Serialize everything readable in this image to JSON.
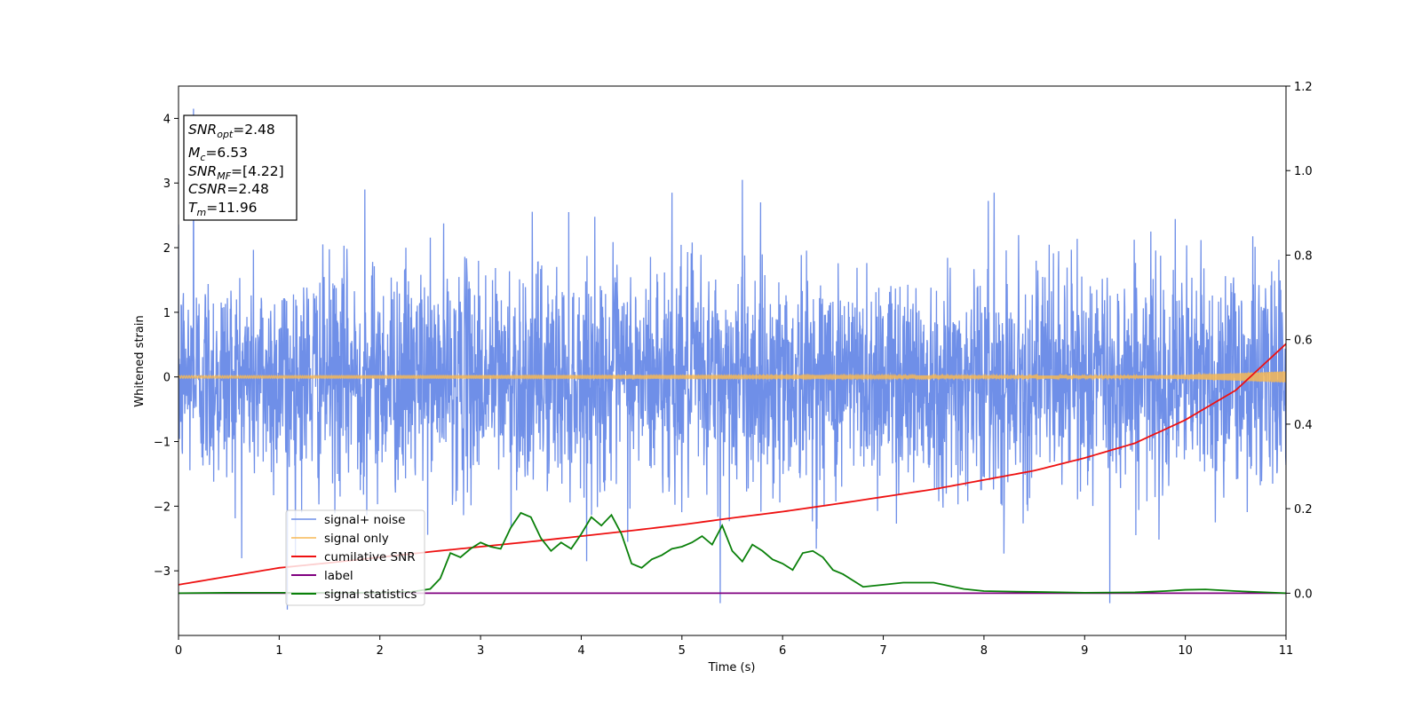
{
  "chart_data": {
    "type": "line",
    "title": "",
    "xlabel": "Time (s)",
    "ylabel": "Whitened strain",
    "xlim": [
      0,
      11
    ],
    "ylim": [
      -4,
      4.5
    ],
    "y2lim": [
      -0.1,
      1.2
    ],
    "x_ticks": [
      "0",
      "1",
      "2",
      "3",
      "4",
      "5",
      "6",
      "7",
      "8",
      "9",
      "10",
      "11"
    ],
    "x_tick_values": [
      0,
      1,
      2,
      3,
      4,
      5,
      6,
      7,
      8,
      9,
      10,
      11
    ],
    "y_ticks": [
      "−3",
      "−2",
      "−1",
      "0",
      "1",
      "2",
      "3",
      "4"
    ],
    "y_tick_values": [
      -3,
      -2,
      -1,
      0,
      1,
      2,
      3,
      4
    ],
    "y2_ticks": [
      "0.0",
      "0.2",
      "0.4",
      "0.6",
      "0.8",
      "1.0",
      "1.2"
    ],
    "y2_tick_values": [
      0.0,
      0.2,
      0.4,
      0.6,
      0.8,
      1.0,
      1.2
    ],
    "grid": false,
    "legend_position": "bottom-left",
    "info_box": {
      "lines": [
        {
          "main": "SNR",
          "sub": "opt",
          "value": "=2.48"
        },
        {
          "main": "M",
          "sub": "c",
          "value": "=6.53"
        },
        {
          "main": "SNR",
          "sub": "MF",
          "value": "=[4.22]"
        },
        {
          "main": "CSNR",
          "sub": "",
          "value": "=2.48"
        },
        {
          "main": "T",
          "sub": "m",
          "value": "=11.96"
        }
      ]
    },
    "series": [
      {
        "name": "signal+ noise",
        "color": "#6f8fe8",
        "axis": "left",
        "style": "noise",
        "amplitude_sd": 0.85,
        "extreme_points": [
          {
            "x": 0.15,
            "y": 4.15
          },
          {
            "x": 1.08,
            "y": -3.6
          },
          {
            "x": 5.38,
            "y": -3.5
          },
          {
            "x": 9.25,
            "y": -3.5
          },
          {
            "x": 5.6,
            "y": 3.05
          },
          {
            "x": 1.85,
            "y": 2.9
          },
          {
            "x": 4.9,
            "y": 2.85
          },
          {
            "x": 8.1,
            "y": 2.85
          }
        ]
      },
      {
        "name": "signal only",
        "color": "#f7b955",
        "axis": "left",
        "style": "chirp",
        "amplitude_start": 0.02,
        "amplitude_end": 0.09,
        "growth_start": 9.5
      },
      {
        "name": "cumilative SNR",
        "color": "#ee1111",
        "axis": "right",
        "x": [
          0,
          0.5,
          1,
          1.5,
          2,
          2.5,
          3,
          3.5,
          4,
          4.5,
          5,
          5.5,
          6,
          6.5,
          7,
          7.5,
          8,
          8.5,
          9,
          9.5,
          10,
          10.5,
          11
        ],
        "values": [
          0.02,
          0.04,
          0.06,
          0.072,
          0.085,
          0.098,
          0.11,
          0.122,
          0.135,
          0.148,
          0.162,
          0.178,
          0.193,
          0.21,
          0.228,
          0.246,
          0.268,
          0.29,
          0.32,
          0.355,
          0.41,
          0.48,
          0.59
        ]
      },
      {
        "name": "label",
        "color": "#800080",
        "axis": "right",
        "x": [
          0,
          11
        ],
        "values": [
          0,
          0
        ]
      },
      {
        "name": "signal statistics",
        "color": "#0a800a",
        "axis": "right",
        "x": [
          0,
          0.5,
          1,
          1.5,
          2,
          2.3,
          2.5,
          2.6,
          2.7,
          2.8,
          2.9,
          3.0,
          3.1,
          3.2,
          3.3,
          3.4,
          3.5,
          3.6,
          3.7,
          3.8,
          3.9,
          4.0,
          4.1,
          4.2,
          4.3,
          4.4,
          4.5,
          4.6,
          4.7,
          4.8,
          4.9,
          5.0,
          5.1,
          5.2,
          5.3,
          5.4,
          5.5,
          5.6,
          5.7,
          5.8,
          5.9,
          6.0,
          6.1,
          6.2,
          6.3,
          6.4,
          6.5,
          6.6,
          6.7,
          6.8,
          7.0,
          7.2,
          7.5,
          7.8,
          8.0,
          8.5,
          9.0,
          9.5,
          9.8,
          10.0,
          10.2,
          10.5,
          11.0
        ],
        "values": [
          0.0,
          0.001,
          0.001,
          0.001,
          0.001,
          0.003,
          0.01,
          0.035,
          0.095,
          0.085,
          0.105,
          0.12,
          0.11,
          0.105,
          0.155,
          0.19,
          0.18,
          0.13,
          0.1,
          0.12,
          0.105,
          0.14,
          0.18,
          0.16,
          0.185,
          0.14,
          0.07,
          0.06,
          0.08,
          0.09,
          0.105,
          0.11,
          0.12,
          0.135,
          0.115,
          0.16,
          0.1,
          0.075,
          0.115,
          0.1,
          0.08,
          0.07,
          0.055,
          0.095,
          0.1,
          0.085,
          0.055,
          0.045,
          0.03,
          0.015,
          0.02,
          0.025,
          0.025,
          0.01,
          0.005,
          0.003,
          0.001,
          0.002,
          0.005,
          0.008,
          0.009,
          0.005,
          0.0
        ]
      }
    ]
  }
}
